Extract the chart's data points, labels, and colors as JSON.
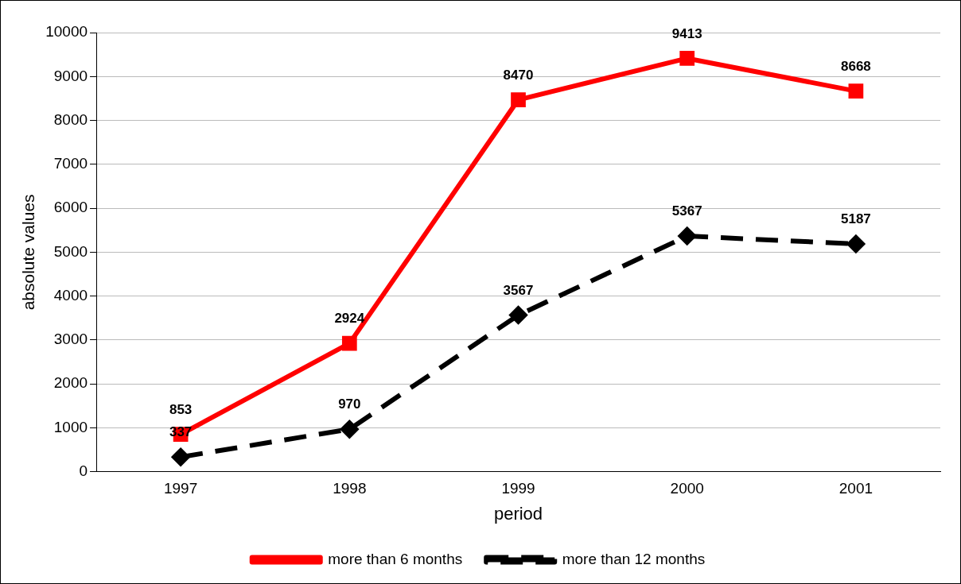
{
  "chart_data": {
    "type": "line",
    "xlabel": "period",
    "ylabel": "absolute values",
    "categories": [
      "1997",
      "1998",
      "1999",
      "2000",
      "2001"
    ],
    "series": [
      {
        "name": "more than 6 months",
        "color": "#ff0000",
        "values": [
          853,
          2924,
          8470,
          9413,
          8668
        ],
        "marker": "square",
        "line_style": "solid"
      },
      {
        "name": "more than 12 months",
        "color": "#000000",
        "values": [
          337,
          970,
          3567,
          5367,
          5187
        ],
        "marker": "diamond",
        "line_style": "dashed"
      }
    ],
    "ylim": [
      0,
      10000
    ],
    "yticks": [
      0,
      1000,
      2000,
      3000,
      4000,
      5000,
      6000,
      7000,
      8000,
      9000,
      10000
    ],
    "grid": "y",
    "legend": "bottom",
    "data_labels": true
  }
}
